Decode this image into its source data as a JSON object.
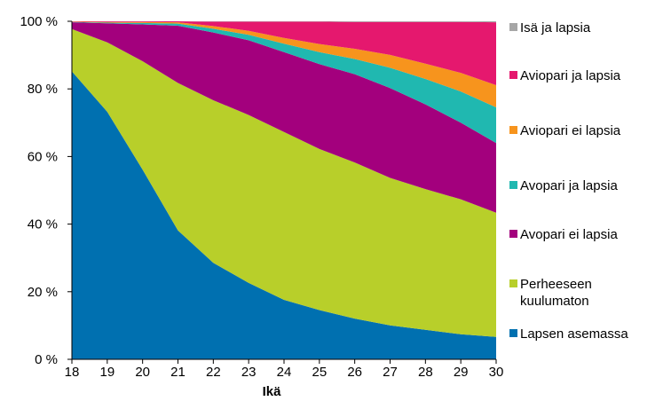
{
  "chart_data": {
    "type": "area",
    "stacked": true,
    "percent": true,
    "x": [
      18,
      19,
      20,
      21,
      22,
      23,
      24,
      25,
      26,
      27,
      28,
      29,
      30
    ],
    "xlabel": "Ikä",
    "ylabel": "",
    "ylim": [
      0,
      100
    ],
    "y_ticks": [
      "0 %",
      "20 %",
      "40 %",
      "60 %",
      "80 %",
      "100 %"
    ],
    "x_ticks": [
      "18",
      "19",
      "20",
      "21",
      "22",
      "23",
      "24",
      "25",
      "26",
      "27",
      "28",
      "29",
      "30"
    ],
    "grid": false,
    "legend_position": "right",
    "series": [
      {
        "name": "Lapsen asemassa",
        "color": "#0070b0",
        "values": [
          85,
          73,
          56,
          38,
          28.5,
          22.5,
          17.5,
          14.5,
          12,
          10,
          8.7,
          7.4,
          6.6
        ]
      },
      {
        "name": "Perheeseen kuulumaton",
        "color": "#b8cf2a",
        "values": [
          12.5,
          20.5,
          32,
          43.5,
          48,
          49.5,
          49.5,
          47.5,
          46,
          43.5,
          41.5,
          39.8,
          36.5
        ]
      },
      {
        "name": "Avopari ei lapsia",
        "color": "#a3007d",
        "values": [
          2,
          5.6,
          10.9,
          16.9,
          20,
          22,
          23.5,
          25,
          26,
          26.5,
          25,
          22.6,
          20.5
        ]
      },
      {
        "name": "Avopari ja lapsia",
        "color": "#20b8b0",
        "values": [
          0.1,
          0.2,
          0.4,
          0.6,
          1.1,
          1.6,
          2.5,
          3.5,
          4.5,
          6,
          7.5,
          9.2,
          10.5
        ]
      },
      {
        "name": "Aviopari ei lapsia",
        "color": "#f7941d",
        "values": [
          0.1,
          0.2,
          0.3,
          0.4,
          0.8,
          1.2,
          1.7,
          2.4,
          3,
          3.8,
          4.5,
          5.5,
          6.5
        ]
      },
      {
        "name": "Aviopari ja lapsia",
        "color": "#e5186e",
        "values": [
          0.1,
          0.2,
          0.2,
          0.3,
          1.3,
          2.7,
          4.8,
          6.6,
          7.9,
          9.7,
          12.3,
          15,
          18.5
        ]
      },
      {
        "name": "Isä ja lapsia",
        "color": "#a6a6a6",
        "values": [
          0,
          0,
          0,
          0,
          0.1,
          0.1,
          0.1,
          0.1,
          0.2,
          0.2,
          0.2,
          0.2,
          0.3
        ]
      }
    ],
    "legend": [
      {
        "label": "Isä ja lapsia",
        "lines": [
          "Isä ja lapsia"
        ],
        "color": "#a6a6a6"
      },
      {
        "label": "Aviopari ja lapsia",
        "lines": [
          "Aviopari ja lapsia"
        ],
        "color": "#e5186e"
      },
      {
        "label": "Aviopari ei lapsia",
        "lines": [
          "Aviopari ei lapsia"
        ],
        "color": "#f7941d"
      },
      {
        "label": "Avopari ja lapsia",
        "lines": [
          "Avopari ja lapsia"
        ],
        "color": "#20b8b0"
      },
      {
        "label": "Avopari ei lapsia",
        "lines": [
          "Avopari ei lapsia"
        ],
        "color": "#a3007d"
      },
      {
        "label": "Perheeseen kuulumaton",
        "lines": [
          "Perheeseen",
          "kuulumaton"
        ],
        "color": "#b8cf2a"
      },
      {
        "label": "Lapsen asemassa",
        "lines": [
          "Lapsen asemassa"
        ],
        "color": "#0070b0"
      }
    ]
  }
}
